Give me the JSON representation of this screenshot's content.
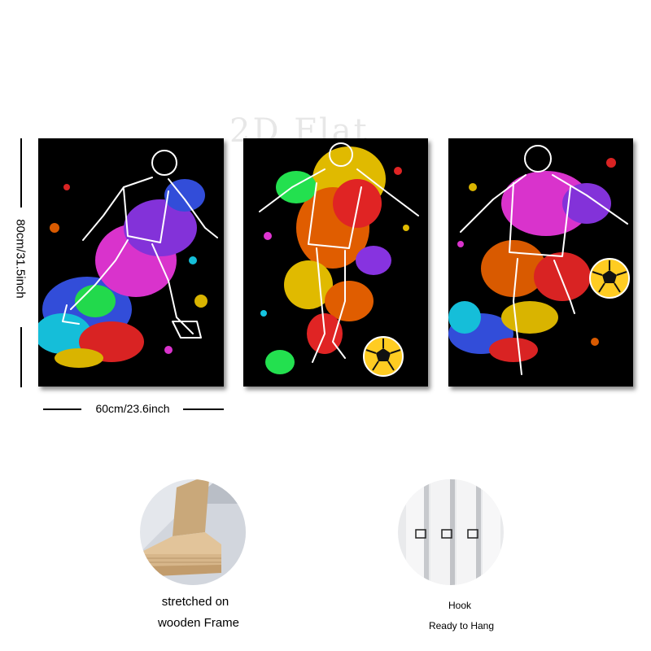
{
  "watermark": "2D Flat",
  "dimensions": {
    "height_label": "80cm/31.5inch",
    "width_label": "60cm/23.6inch"
  },
  "panels": [
    {
      "subject": "soccer-player-kicking",
      "palette": [
        "#ff3df0",
        "#3b5bff",
        "#19e0ff",
        "#ffd400",
        "#ff2a2a",
        "#28ff5a"
      ]
    },
    {
      "subject": "soccer-player-dribbling",
      "palette": [
        "#ff6a00",
        "#ff2a2a",
        "#ffd400",
        "#28ff5a",
        "#9a3bff",
        "#19e0ff"
      ]
    },
    {
      "subject": "soccer-player-striking",
      "palette": [
        "#ff3df0",
        "#ff6a00",
        "#ff2a2a",
        "#ffd400",
        "#3b5bff",
        "#19e0ff"
      ]
    }
  ],
  "features": [
    {
      "label_line1": "stretched on",
      "label_line2": "wooden Frame",
      "icon": "wooden-frame-photo"
    },
    {
      "label_line1": "Hook",
      "label_line2": "Ready to Hang",
      "icon": "hook-photo"
    }
  ],
  "colors": {
    "panel_bg": "#000000",
    "outline": "#ffffff",
    "ball": "#ffcc22"
  }
}
